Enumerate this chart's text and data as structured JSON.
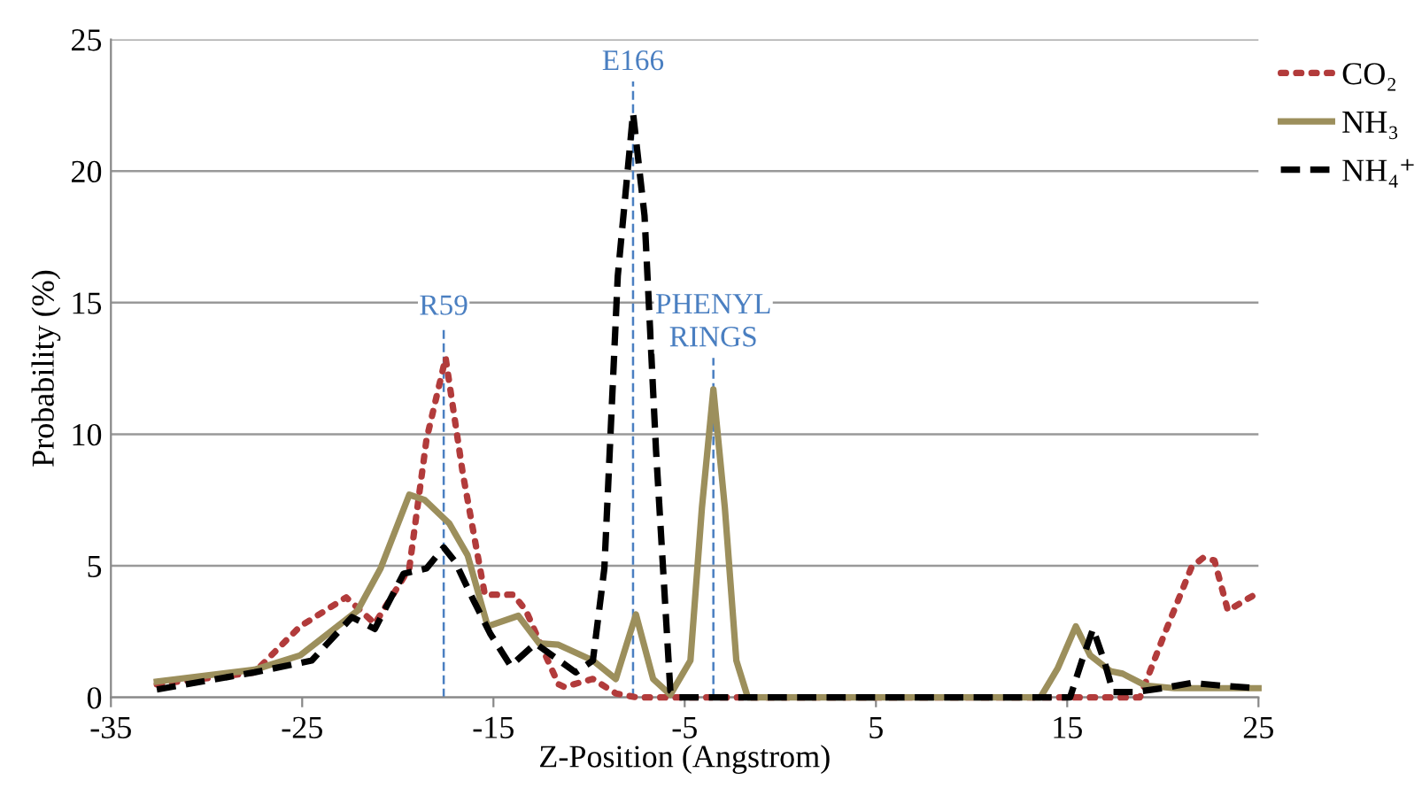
{
  "chart_data": {
    "type": "line",
    "xlabel": "Z-Position (Angstrom)",
    "ylabel": "Probability (%)",
    "xlim": [
      -35,
      25
    ],
    "ylim": [
      0,
      25
    ],
    "xticks": [
      -35,
      -25,
      -15,
      -5,
      5,
      15,
      25
    ],
    "yticks": [
      0,
      5,
      10,
      15,
      20,
      25
    ],
    "grid": "y",
    "legend": "top right",
    "marker": "none",
    "series": [
      {
        "name": "CO₂",
        "color": "#b23b3b",
        "line_style": "dotted",
        "x": [
          -32.6,
          -27.5,
          -25.1,
          -22.7,
          -21.2,
          -19.4,
          -18.5,
          -17.5,
          -16.6,
          -15.45,
          -13.95,
          -13.3,
          -12.4,
          -11.6,
          -11.3,
          -9.8,
          -8.6,
          -7.5,
          0,
          10,
          18.8,
          20.0,
          21.5,
          22.1,
          22.7,
          23.4,
          24.8,
          25
        ],
        "values": [
          0.5,
          0.95,
          2.7,
          3.8,
          2.8,
          4.9,
          9.8,
          12.9,
          8.5,
          3.9,
          3.9,
          3.3,
          1.8,
          0.5,
          0.4,
          0.7,
          0.15,
          0,
          0,
          0,
          0,
          2.25,
          4.95,
          5.3,
          5.2,
          3.3,
          3.9,
          4.0
        ]
      },
      {
        "name": "NH₃",
        "color": "#9c8f5c",
        "line_style": "solid",
        "x": [
          -32.6,
          -27.5,
          -25.1,
          -22.1,
          -20.9,
          -19.4,
          -18.6,
          -17.3,
          -16.35,
          -15.3,
          -13.7,
          -12.6,
          -11.6,
          -9.8,
          -8.6,
          -7.55,
          -6.65,
          -5.75,
          -4.7,
          -4.1,
          -3.5,
          -2.9,
          -2.3,
          -1.7,
          5,
          13.6,
          14.5,
          15.45,
          16.2,
          17.25,
          17.9,
          19.1,
          20.6,
          25
        ],
        "values": [
          0.6,
          1.05,
          1.6,
          3.3,
          4.9,
          7.7,
          7.5,
          6.6,
          5.4,
          2.7,
          3.1,
          2.05,
          2.0,
          1.4,
          0.7,
          3.15,
          0.7,
          0.1,
          1.4,
          7.2,
          11.7,
          7.2,
          1.4,
          0,
          0,
          0,
          1.1,
          2.7,
          1.6,
          1.0,
          0.9,
          0.45,
          0.35,
          0.35
        ]
      },
      {
        "name": "NH₄⁺",
        "color": "#000000",
        "line_style": "dashed",
        "x": [
          -32.6,
          -27.5,
          -24.5,
          -22.4,
          -21.2,
          -19.7,
          -18.5,
          -17.6,
          -17.0,
          -16.05,
          -15.15,
          -14.1,
          -12.8,
          -10.7,
          -9.8,
          -9.2,
          -8.5,
          -7.7,
          -7.1,
          -6.5,
          -5.75,
          -5.3,
          5,
          15.15,
          15.75,
          16.35,
          16.95,
          17.4,
          18.5,
          20.0,
          21.5,
          23.0,
          25
        ],
        "values": [
          0.3,
          0.95,
          1.4,
          3.05,
          2.6,
          4.7,
          4.9,
          5.7,
          5.15,
          3.7,
          2.4,
          1.2,
          2.05,
          0.95,
          1.4,
          4.9,
          16.0,
          22.2,
          18.3,
          9.4,
          0.25,
          0,
          0,
          0,
          1.35,
          2.6,
          1.35,
          0.2,
          0.2,
          0.35,
          0.55,
          0.45,
          0.35
        ]
      }
    ],
    "ref_lines": [
      {
        "axis": "x",
        "value": -17.6,
        "label": "R59",
        "color": "#4a7fc1",
        "line_style": "dashed"
      },
      {
        "axis": "x",
        "value": -7.7,
        "label": "E166",
        "color": "#4a7fc1",
        "line_style": "dashed"
      },
      {
        "axis": "x",
        "value": -3.5,
        "label": "PHENYL\nRINGS",
        "color": "#4a7fc1",
        "line_style": "dashed"
      }
    ]
  }
}
